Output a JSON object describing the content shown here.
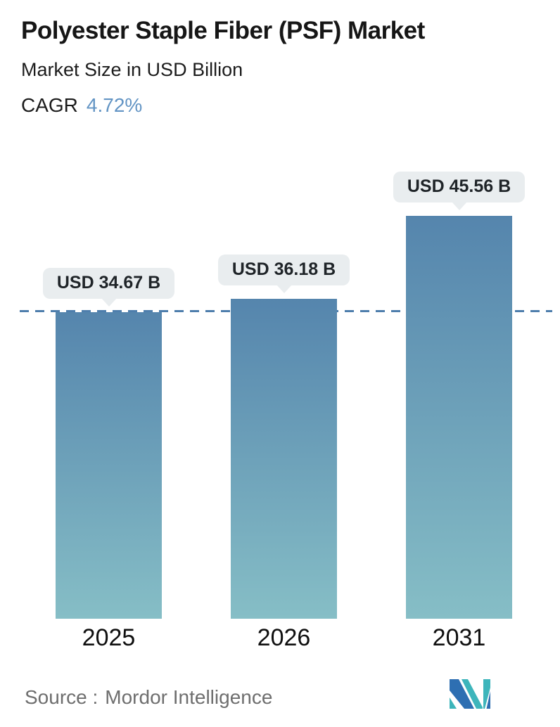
{
  "header": {
    "title": "Polyester Staple Fiber (PSF) Market",
    "subtitle": "Market Size in USD Billion",
    "cagr_label": "CAGR",
    "cagr_value": "4.72%"
  },
  "chart_data": {
    "type": "bar",
    "title": "Polyester Staple Fiber (PSF) Market",
    "subtitle": "Market Size in USD Billion",
    "cagr": "4.72%",
    "unit": "USD Billion",
    "categories": [
      "2025",
      "2026",
      "2031"
    ],
    "values": [
      34.67,
      36.18,
      45.56
    ],
    "value_labels": [
      "USD 34.67 B",
      "USD 36.18 B",
      "USD 45.56 B"
    ],
    "ylim": [
      0,
      50
    ],
    "grid": false,
    "legend": "none",
    "baseline": {
      "value": 34.67,
      "style": "dashed"
    }
  },
  "styles": {
    "bar_gradient_top": "#5585ad",
    "bar_gradient_bottom": "#86bec6",
    "dashed_line_color": "#4e7eac",
    "pill_bg": "#e9edef",
    "pill_text": "#1f2428",
    "cagr_value_color": "#6294c4",
    "source_text_color": "#6e6e6e",
    "logo_blue": "#2e6fb2",
    "logo_teal": "#3db5bb"
  },
  "footer": {
    "source_label": "Source :",
    "source_value": "Mordor Intelligence"
  }
}
